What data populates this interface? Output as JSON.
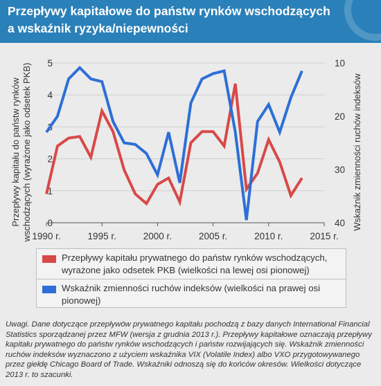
{
  "header": {
    "title_line1": "Przepływy kapitałowe do państw rynków wschodzących",
    "title_line2": "a wskaźnik ryzyka/niepewności",
    "bg_color": "#2a80b9"
  },
  "chart_data": {
    "type": "line",
    "x_tick_labels": [
      "1990 r.",
      "1995 r.",
      "2000 r.",
      "2005 r.",
      "2010 r.",
      "2015 r."
    ],
    "x_ticks": [
      1990,
      1995,
      2000,
      2005,
      2010,
      2015
    ],
    "xlim": [
      1990,
      2015
    ],
    "y_left": {
      "label_line1": "Przepływy kapitału do państw rynków",
      "label_line2": "wschodzących (wyrażone jako odsetek PKB)",
      "ticks": [
        "0",
        "1",
        "2",
        "3",
        "4",
        "5"
      ],
      "tick_values": [
        0,
        1,
        2,
        3,
        4,
        5
      ],
      "lim": [
        0,
        5
      ]
    },
    "y_right": {
      "label": "Wskaźnik zmienności ruchów indeksów",
      "ticks": [
        "10",
        "20",
        "30",
        "40"
      ],
      "tick_values": [
        10,
        20,
        30,
        40
      ],
      "lim": [
        10,
        40
      ],
      "inverted": true
    },
    "series": [
      {
        "name": "Przepływy kapitału prywatnego do państw rynków wschodzących, wyrażone jako odsetek PKB (wielkości na lewej osi pionowej)",
        "axis": "left",
        "color": "#d84949",
        "x": [
          1990,
          1991,
          1992,
          1993,
          1994,
          1995,
          1996,
          1997,
          1998,
          1999,
          2000,
          2001,
          2002,
          2003,
          2004,
          2005,
          2006,
          2007,
          2008,
          2009,
          2010,
          2011,
          2012,
          2013
        ],
        "y": [
          0.9,
          2.4,
          2.65,
          2.7,
          2.05,
          3.5,
          2.85,
          1.65,
          0.9,
          0.6,
          1.2,
          1.4,
          0.65,
          2.5,
          2.85,
          2.85,
          2.4,
          4.35,
          1.05,
          1.55,
          2.6,
          1.9,
          0.85,
          1.4
        ]
      },
      {
        "name": "Wskaźnik zmienności ruchów indeksów (wielkości na prawej osi pionowej)",
        "axis": "right",
        "color": "#2d6fd6",
        "x": [
          1990,
          1991,
          1992,
          1993,
          1994,
          1995,
          1996,
          1997,
          1998,
          1999,
          2000,
          2001,
          2002,
          2003,
          2004,
          2005,
          2006,
          2007,
          2008,
          2009,
          2010,
          2011,
          2012,
          2013
        ],
        "y": [
          23.0,
          20.0,
          13.0,
          10.9,
          13.0,
          13.5,
          21.0,
          25.0,
          25.3,
          27.0,
          31.0,
          23.0,
          32.5,
          17.5,
          13.0,
          12.0,
          11.5,
          23.0,
          39.5,
          21.0,
          17.8,
          23.0,
          16.5,
          11.5
        ]
      }
    ],
    "grid": "horizontal"
  },
  "legend": {
    "private_label": "Przepływy kapitału prywatnego do państw rynków wschodzących, wyrażone jako odsetek PKB (wielkości na lewej osi pionowej)",
    "vix_label": "Wskaźnik zmienności ruchów indeksów (wielkości na prawej osi pionowej)",
    "private_color": "#d84949",
    "vix_color": "#2d6fd6"
  },
  "notes": "Uwagi. Dane dotyczące przepływów prywatnego kapitału pochodzą z bazy danych International Financial Statistics sporządzanej przez MFW (wersja z grudnia 2013 r.). Przepływy kapitałowe oznaczają przepływy kapitału prywatnego do państw rynków wschodzących i państw rozwijających się. Wskaźnik zmienności ruchów indeksów wyznaczono z użyciem wskaźnika VIX (Volatile Index) albo VXO przygotowywanego przez giełdę Chicago Board of Trade. Wskaźniki odnoszą się do końców okresów. Wielkości dotyczące 2013 r. to szacunki."
}
